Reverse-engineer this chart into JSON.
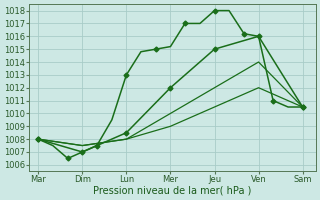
{
  "title": "",
  "xlabel": "Pression niveau de la mer( hPa )",
  "ylabel": "",
  "background_color": "#cde8e4",
  "grid_color": "#a8ccc8",
  "line_color": "#1a6e1a",
  "x_labels": [
    "Mar",
    "Dim",
    "Lun",
    "Mer",
    "Jeu",
    "Ven",
    "Sam"
  ],
  "x_positions": [
    0,
    1,
    2,
    3,
    4,
    5,
    6
  ],
  "ylim": [
    1005.5,
    1018.5
  ],
  "yticks": [
    1006,
    1007,
    1008,
    1009,
    1010,
    1011,
    1012,
    1013,
    1014,
    1015,
    1016,
    1017,
    1018
  ],
  "series": [
    {
      "x": [
        0,
        0.33,
        0.67,
        1.0,
        1.33,
        1.67,
        2.0,
        2.33,
        2.67,
        3.0,
        3.33,
        3.67,
        4.0,
        4.33,
        4.67,
        5.0,
        5.33,
        5.67,
        6.0
      ],
      "y": [
        1008,
        1007.5,
        1006.5,
        1007,
        1007.5,
        1009.5,
        1013,
        1014.8,
        1015,
        1015.2,
        1017,
        1017,
        1018,
        1018,
        1016.2,
        1016,
        1011,
        1010.5,
        1010.5
      ],
      "marker": "D",
      "markersize": 2.5,
      "linewidth": 1.1,
      "markevery": 2
    },
    {
      "x": [
        0,
        1,
        2,
        3,
        4,
        5,
        6
      ],
      "y": [
        1008,
        1007.5,
        1008,
        1009,
        1010.5,
        1012,
        1010.5
      ],
      "marker": null,
      "markersize": 0,
      "linewidth": 0.9,
      "markevery": 1
    },
    {
      "x": [
        0,
        1,
        2,
        3,
        4,
        5,
        6
      ],
      "y": [
        1008,
        1007.5,
        1008,
        1010,
        1012,
        1014,
        1010.5
      ],
      "marker": null,
      "markersize": 0,
      "linewidth": 0.9,
      "markevery": 1
    },
    {
      "x": [
        0,
        1,
        2,
        3,
        4,
        5,
        6
      ],
      "y": [
        1008,
        1007,
        1008.5,
        1012,
        1015,
        1016,
        1010.5
      ],
      "marker": "D",
      "markersize": 2.5,
      "linewidth": 1.1,
      "markevery": 1
    }
  ]
}
